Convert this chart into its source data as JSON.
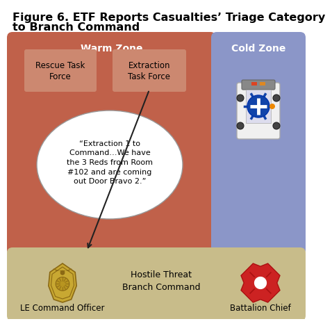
{
  "title_line1": "Figure 6. ETF Reports Casualties’ Triage Category",
  "title_line2": "to Branch Command",
  "warm_zone_label": "Warm Zone",
  "cold_zone_label": "Cold Zone",
  "rtf_label": "Rescue Task\nForce",
  "etf_label": "Extraction\nTask Force",
  "speech_text": "“Extraction 1 to\nCommand…We have\nthe 3 Reds from Room\n#102 and are coming\nout Door Bravo 2.”",
  "branch_label": "Hostile Threat\nBranch Command",
  "le_label": "LE Command Officer",
  "bn_label": "Battalion Chief",
  "warm_zone_color": "#C0614A",
  "cold_zone_color": "#8B96C8",
  "bottom_bar_color": "#C8BC8A",
  "rtf_box_color": "#CC8870",
  "etf_box_color": "#CC8870",
  "speech_fill": "#FFFFFF",
  "background_color": "#FFFFFF",
  "title_fontsize": 11.5,
  "label_fontsize": 10,
  "small_fontsize": 9,
  "speech_fontsize": 8,
  "badge_color": "#C8A832",
  "badge_dark": "#8B6914",
  "fire_red": "#CC2222",
  "arrow_color": "#222222"
}
